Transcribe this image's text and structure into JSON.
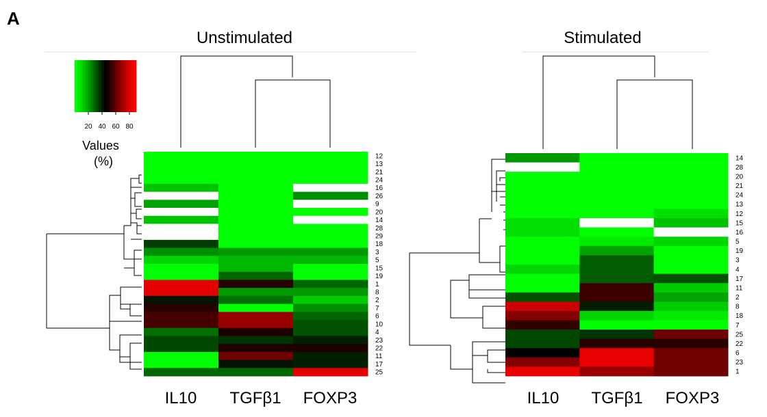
{
  "panel_letter": "A",
  "legend": {
    "title_line1": "Values",
    "title_line2": "(%)",
    "ticks": [
      "20",
      "40",
      "60",
      "80"
    ],
    "colors": [
      "#00ff00",
      "#00ee00",
      "#00dd00",
      "#00c800",
      "#00b000",
      "#009900",
      "#007f00",
      "#006400",
      "#004a00",
      "#003000",
      "#001800",
      "#000000",
      "#180000",
      "#300000",
      "#4a0000",
      "#640000",
      "#7f0000",
      "#990000",
      "#b00000",
      "#c80000",
      "#dd0000",
      "#ee0000",
      "#ff0000"
    ],
    "range": [
      0,
      100
    ]
  },
  "chart_data": [
    {
      "type": "heatmap",
      "title": "Unstimulated",
      "columns": [
        "IL10",
        "TGFβ1",
        "FOXP3"
      ],
      "rows": [
        "12",
        "13",
        "21",
        "24",
        "16",
        "26",
        "9",
        "20",
        "14",
        "28",
        "29",
        "18",
        "3",
        "5",
        "15",
        "19",
        "1",
        "8",
        "2",
        "7",
        "6",
        "10",
        "4",
        "23",
        "22",
        "11",
        "17",
        "25"
      ],
      "values": [
        [
          0,
          0,
          0
        ],
        [
          0,
          0,
          0
        ],
        [
          0,
          0,
          0
        ],
        [
          0,
          0,
          0
        ],
        [
          12,
          0,
          null
        ],
        [
          null,
          0,
          22
        ],
        [
          18,
          0,
          null
        ],
        [
          null,
          0,
          0
        ],
        [
          12,
          0,
          null
        ],
        [
          null,
          0,
          0
        ],
        [
          null,
          0,
          0
        ],
        [
          38,
          0,
          0
        ],
        [
          22,
          20,
          20
        ],
        [
          8,
          14,
          14
        ],
        [
          0,
          14,
          0
        ],
        [
          0,
          30,
          0
        ],
        [
          95,
          58,
          30
        ],
        [
          95,
          20,
          20
        ],
        [
          46,
          28,
          10
        ],
        [
          58,
          0,
          22
        ],
        [
          64,
          80,
          30
        ],
        [
          64,
          80,
          34
        ],
        [
          28,
          56,
          34
        ],
        [
          36,
          40,
          44
        ],
        [
          36,
          56,
          56
        ],
        [
          0,
          72,
          44
        ],
        [
          0,
          46,
          44
        ],
        [
          30,
          30,
          95
        ]
      ]
    },
    {
      "type": "heatmap",
      "title": "Stimulated",
      "columns": [
        "IL10",
        "TGFβ1",
        "FOXP3"
      ],
      "rows": [
        "14",
        "28",
        "20",
        "21",
        "24",
        "13",
        "12",
        "15",
        "16",
        "5",
        "19",
        "3",
        "4",
        "17",
        "11",
        "2",
        "8",
        "18",
        "7",
        "25",
        "22",
        "6",
        "23",
        "1"
      ],
      "values": [
        [
          20,
          0,
          0
        ],
        [
          null,
          0,
          0
        ],
        [
          0,
          0,
          0
        ],
        [
          0,
          0,
          0
        ],
        [
          0,
          0,
          0
        ],
        [
          0,
          0,
          0
        ],
        [
          0,
          0,
          6
        ],
        [
          6,
          null,
          12
        ],
        [
          6,
          0,
          null
        ],
        [
          0,
          4,
          8
        ],
        [
          0,
          18,
          0
        ],
        [
          0,
          32,
          0
        ],
        [
          8,
          32,
          0
        ],
        [
          0,
          32,
          34
        ],
        [
          0,
          62,
          10
        ],
        [
          34,
          62,
          18
        ],
        [
          90,
          44,
          10
        ],
        [
          76,
          8,
          4
        ],
        [
          60,
          0,
          0
        ],
        [
          36,
          40,
          72
        ],
        [
          36,
          58,
          58
        ],
        [
          50,
          96,
          72
        ],
        [
          76,
          96,
          72
        ],
        [
          96,
          80,
          72
        ]
      ]
    }
  ]
}
